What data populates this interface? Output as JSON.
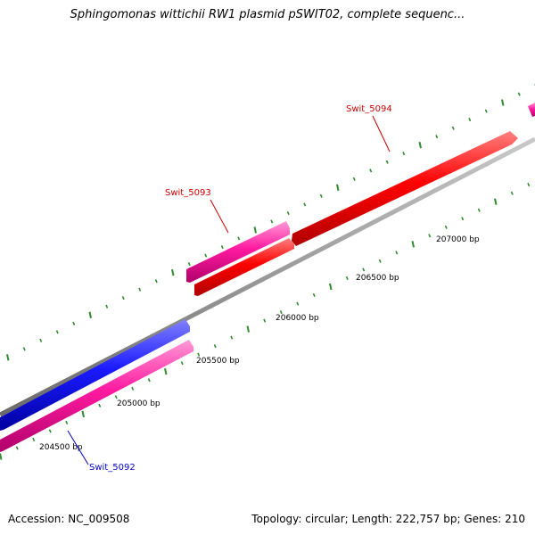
{
  "title": "Sphingomonas wittichii RW1 plasmid pSWIT02, complete sequenc...",
  "footer": {
    "accession": "Accession: NC_009508",
    "stats": "Topology: circular; Length: 222,757 bp; Genes: 210"
  },
  "colors": {
    "backbone": "#8c8c8c",
    "tick": "#2e8b2e",
    "gene_red": "#ff0000",
    "gene_pink": "#ff1aa0",
    "gene_blue": "#1a1aff",
    "label_red": "#cc0000",
    "label_blue": "#0000cc"
  },
  "ticks": [
    {
      "label": "204500 bp"
    },
    {
      "label": "205000 bp"
    },
    {
      "label": "205500 bp"
    },
    {
      "label": "206000 bp"
    },
    {
      "label": "206500 bp"
    },
    {
      "label": "207000 bp"
    }
  ],
  "genes": [
    {
      "name": "Swit_5092",
      "color": "blue"
    },
    {
      "name": "Swit_5093",
      "color": "pink"
    },
    {
      "name": "Swit_5094",
      "color": "red"
    }
  ]
}
